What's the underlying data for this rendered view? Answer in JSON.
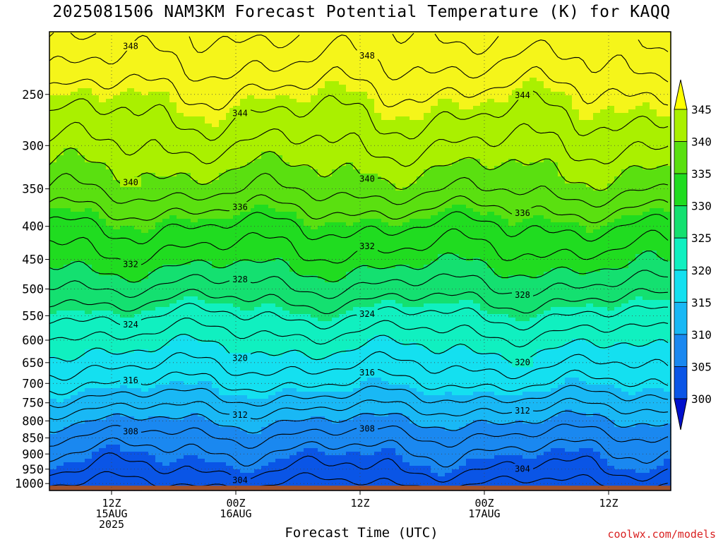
{
  "title": "2025081506 NAM3KM Forecast Potential Temperature (K) for KAQQ",
  "xlabel": "Forecast Time (UTC)",
  "credit": "coolwx.com/models",
  "chart_data": {
    "type": "heatmap",
    "title": "2025081506 NAM3KM Forecast Potential Temperature (K) for KAQQ",
    "xlabel": "Forecast Time (UTC)",
    "ylabel": "",
    "y_scale": "log-pressure",
    "x_range_hours_utc": [
      "2025-08-15 06Z",
      "2025-08-17 18Z"
    ],
    "y_range_hpa": [
      1025,
      200
    ],
    "y_ticks": [
      250,
      300,
      350,
      400,
      450,
      500,
      550,
      600,
      650,
      700,
      750,
      800,
      850,
      900,
      950,
      1000
    ],
    "x_ticks": [
      {
        "lines": [
          "12Z",
          "15AUG",
          "2025"
        ],
        "hour": 6
      },
      {
        "lines": [
          "00Z",
          "16AUG"
        ],
        "hour": 18
      },
      {
        "lines": [
          "12Z"
        ],
        "hour": 30
      },
      {
        "lines": [
          "00Z",
          "17AUG"
        ],
        "hour": 42
      },
      {
        "lines": [
          "12Z"
        ],
        "hour": 54
      }
    ],
    "colorbar": {
      "levels": [
        300,
        305,
        310,
        315,
        320,
        325,
        330,
        335,
        340,
        345
      ],
      "colors": [
        "#0a1ecc",
        "#0a55e6",
        "#1a88f0",
        "#19b8f5",
        "#14e0f0",
        "#10f0c0",
        "#14e070",
        "#20dc20",
        "#5ae010",
        "#aaf000",
        "#f5f51a"
      ],
      "under_color": "#0010cc",
      "over_color": "#ffff00"
    },
    "contour_interval_K": 2,
    "contour_labels": [
      {
        "value": 348
      },
      {
        "value": 344
      },
      {
        "value": 340
      },
      {
        "value": 336
      },
      {
        "value": 332
      },
      {
        "value": 328
      },
      {
        "value": 324
      },
      {
        "value": 320
      },
      {
        "value": 316
      },
      {
        "value": 312
      },
      {
        "value": 308
      },
      {
        "value": 304
      }
    ],
    "profile": [
      {
        "p": 200,
        "theta": 350
      },
      {
        "p": 230,
        "theta": 347.5
      },
      {
        "p": 250,
        "theta": 345.5
      },
      {
        "p": 300,
        "theta": 342
      },
      {
        "p": 350,
        "theta": 338.5
      },
      {
        "p": 400,
        "theta": 334
      },
      {
        "p": 450,
        "theta": 331
      },
      {
        "p": 500,
        "theta": 327.5
      },
      {
        "p": 550,
        "theta": 324
      },
      {
        "p": 600,
        "theta": 321
      },
      {
        "p": 650,
        "theta": 318.5
      },
      {
        "p": 700,
        "theta": 316
      },
      {
        "p": 750,
        "theta": 313
      },
      {
        "p": 800,
        "theta": 310
      },
      {
        "p": 850,
        "theta": 307.5
      },
      {
        "p": 900,
        "theta": 305.5
      },
      {
        "p": 950,
        "theta": 304
      },
      {
        "p": 1000,
        "theta": 302
      },
      {
        "p": 1025,
        "theta": 300.5
      }
    ],
    "ground_color": "#a0522d",
    "grid": true
  }
}
